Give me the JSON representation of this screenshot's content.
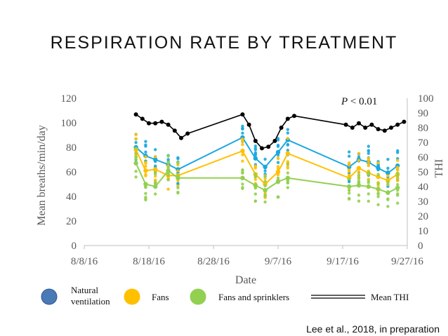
{
  "title": "RESPIRATION RATE BY TREATMENT",
  "credit": "Lee et al., 2018, in preparation",
  "chart_data": {
    "type": "scatter",
    "title": "RESPIRATION RATE BY TREATMENT",
    "xlabel": "Date",
    "ylabel": "Mean breaths/min/day",
    "y2label": "THI",
    "annotation": {
      "italic": "P",
      "text": " < 0.01"
    },
    "x_ticks": [
      {
        "label": "8/8/16",
        "day": 0
      },
      {
        "label": "8/18/16",
        "day": 10
      },
      {
        "label": "8/28/16",
        "day": 20
      },
      {
        "label": "9/7/16",
        "day": 30
      },
      {
        "label": "9/17/16",
        "day": 40
      },
      {
        "label": "9/27/16",
        "day": 50
      }
    ],
    "xlim_days": [
      0,
      50
    ],
    "ylim": [
      0,
      120
    ],
    "y_ticks": [
      "0",
      "20",
      "40",
      "60",
      "80",
      "100",
      "120"
    ],
    "y2lim": [
      0,
      100
    ],
    "y2_ticks": [
      "0",
      "10",
      "20",
      "30",
      "40",
      "50",
      "60",
      "70",
      "80",
      "90",
      "100"
    ],
    "legend": [
      {
        "label": "Natural ventilation",
        "color": "#4a7ab5",
        "kind": "dot"
      },
      {
        "label": "Fans",
        "color": "#ffc000",
        "kind": "dot"
      },
      {
        "label": "Fans and sprinklers",
        "color": "#92d050",
        "kind": "dot"
      },
      {
        "label": "Mean THI",
        "color": "#000000",
        "kind": "line"
      }
    ],
    "series": [
      {
        "name": "Natural ventilation",
        "color": "#1aa7e0",
        "days": [
          8,
          9.5,
          11,
          13,
          14.5,
          24.5,
          26.5,
          28,
          30,
          31.5,
          41,
          42.5,
          44,
          45.5,
          47,
          48.5
        ],
        "values": [
          80,
          73,
          70,
          66,
          62,
          88,
          71,
          64,
          76,
          86,
          64,
          70,
          68,
          63,
          59,
          65
        ]
      },
      {
        "name": "Fans",
        "color": "#ffc000",
        "days": [
          8,
          9.5,
          11,
          13,
          14.5,
          24.5,
          26.5,
          28,
          30,
          31.5,
          41,
          42.5,
          44,
          45.5,
          47,
          48.5
        ],
        "values": [
          78,
          61,
          62,
          57,
          57,
          77,
          58,
          50,
          60,
          75,
          55,
          63,
          59,
          56,
          53,
          58
        ]
      },
      {
        "name": "Fans and sprinklers",
        "color": "#92d050",
        "days": [
          8,
          9.5,
          11,
          13,
          14.5,
          24.5,
          26.5,
          28,
          30,
          31.5,
          41,
          42.5,
          44,
          45.5,
          47,
          48.5
        ],
        "values": [
          67,
          50,
          48,
          61,
          55,
          55,
          49,
          45,
          52,
          55,
          48,
          49,
          48,
          46,
          43,
          47
        ]
      },
      {
        "name": "Mean THI",
        "color": "#000000",
        "axis": "right",
        "days": [
          8,
          9,
          10,
          11,
          12,
          13,
          14,
          15,
          16,
          24.5,
          25.5,
          26.5,
          27.5,
          28.5,
          29.5,
          30.5,
          31.5,
          32.5,
          40.5,
          41.5,
          42.5,
          43.5,
          44.5,
          45.5,
          46.5,
          47.5,
          48.5,
          49.5
        ],
        "values": [
          89,
          86,
          83,
          83,
          84,
          82,
          78,
          73,
          76,
          89,
          82,
          71,
          66,
          67,
          71,
          80,
          86,
          88,
          82,
          80,
          83,
          80,
          82,
          79,
          78,
          80,
          82,
          84
        ]
      }
    ]
  }
}
